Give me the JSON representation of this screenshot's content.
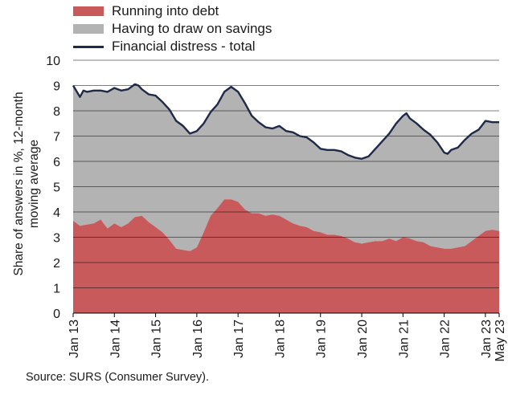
{
  "legend": {
    "debt_label": "Running into debt",
    "savings_label": "Having to draw on savings",
    "total_label": "Financial distress - total"
  },
  "y_axis_title": "Share of answers in %, 12-month moving average",
  "source": "Source: SURS (Consumer Survey).",
  "colors": {
    "debt_fill": "#c95a5c",
    "savings_fill": "#b3b3b3",
    "total_line": "#1f2a48",
    "grid": "#000000"
  },
  "chart_data": {
    "type": "area",
    "title": "",
    "ylabel": "Share of answers in %, 12-month moving average",
    "xlabel": "",
    "ylim": [
      0,
      10
    ],
    "y_ticks": [
      0,
      1,
      2,
      3,
      4,
      5,
      6,
      7,
      8,
      9,
      10
    ],
    "x_ticks": [
      "Jan 13",
      "Jan 14",
      "Jan 15",
      "Jan 16",
      "Jan 17",
      "Jan 18",
      "Jan 19",
      "Jan 20",
      "Jan 21",
      "Jan 22",
      "Jan 23",
      "May 23"
    ],
    "grid": true,
    "legend_position": "top-left",
    "series": [
      {
        "name": "Running into debt",
        "kind": "area",
        "points": [
          [
            "2013-01",
            3.65
          ],
          [
            "2013-03",
            3.45
          ],
          [
            "2013-05",
            3.5
          ],
          [
            "2013-07",
            3.55
          ],
          [
            "2013-09",
            3.7
          ],
          [
            "2013-11",
            3.35
          ],
          [
            "2014-01",
            3.55
          ],
          [
            "2014-03",
            3.4
          ],
          [
            "2014-05",
            3.55
          ],
          [
            "2014-07",
            3.8
          ],
          [
            "2014-09",
            3.85
          ],
          [
            "2014-11",
            3.6
          ],
          [
            "2015-01",
            3.4
          ],
          [
            "2015-03",
            3.2
          ],
          [
            "2015-05",
            2.9
          ],
          [
            "2015-07",
            2.55
          ],
          [
            "2015-09",
            2.5
          ],
          [
            "2015-11",
            2.45
          ],
          [
            "2016-01",
            2.6
          ],
          [
            "2016-03",
            3.2
          ],
          [
            "2016-05",
            3.85
          ],
          [
            "2016-07",
            4.15
          ],
          [
            "2016-09",
            4.5
          ],
          [
            "2016-11",
            4.5
          ],
          [
            "2017-01",
            4.4
          ],
          [
            "2017-03",
            4.1
          ],
          [
            "2017-05",
            3.95
          ],
          [
            "2017-07",
            3.95
          ],
          [
            "2017-09",
            3.85
          ],
          [
            "2017-11",
            3.9
          ],
          [
            "2018-01",
            3.85
          ],
          [
            "2018-03",
            3.7
          ],
          [
            "2018-05",
            3.55
          ],
          [
            "2018-07",
            3.45
          ],
          [
            "2018-09",
            3.4
          ],
          [
            "2018-11",
            3.25
          ],
          [
            "2019-01",
            3.2
          ],
          [
            "2019-03",
            3.1
          ],
          [
            "2019-05",
            3.1
          ],
          [
            "2019-07",
            3.05
          ],
          [
            "2019-09",
            2.95
          ],
          [
            "2019-11",
            2.8
          ],
          [
            "2020-01",
            2.75
          ],
          [
            "2020-03",
            2.8
          ],
          [
            "2020-05",
            2.85
          ],
          [
            "2020-07",
            2.85
          ],
          [
            "2020-09",
            2.95
          ],
          [
            "2020-11",
            2.85
          ],
          [
            "2021-01",
            3.0
          ],
          [
            "2021-03",
            2.95
          ],
          [
            "2021-05",
            2.85
          ],
          [
            "2021-07",
            2.8
          ],
          [
            "2021-09",
            2.65
          ],
          [
            "2021-11",
            2.6
          ],
          [
            "2022-01",
            2.55
          ],
          [
            "2022-03",
            2.55
          ],
          [
            "2022-05",
            2.6
          ],
          [
            "2022-07",
            2.65
          ],
          [
            "2022-09",
            2.85
          ],
          [
            "2022-11",
            3.05
          ],
          [
            "2023-01",
            3.25
          ],
          [
            "2023-03",
            3.3
          ],
          [
            "2023-05",
            3.25
          ]
        ]
      },
      {
        "name": "Having to draw on savings",
        "kind": "stacked-area",
        "note_values": "stacked on top of debt; top edge equals the total line"
      },
      {
        "name": "Financial distress - total",
        "kind": "line",
        "points": [
          [
            "2013-01",
            9.0
          ],
          [
            "2013-03",
            8.55
          ],
          [
            "2013-04",
            8.8
          ],
          [
            "2013-05",
            8.75
          ],
          [
            "2013-07",
            8.8
          ],
          [
            "2013-09",
            8.8
          ],
          [
            "2013-11",
            8.75
          ],
          [
            "2014-01",
            8.9
          ],
          [
            "2014-03",
            8.8
          ],
          [
            "2014-05",
            8.85
          ],
          [
            "2014-07",
            9.05
          ],
          [
            "2014-08",
            9.0
          ],
          [
            "2014-09",
            8.85
          ],
          [
            "2014-11",
            8.65
          ],
          [
            "2015-01",
            8.6
          ],
          [
            "2015-03",
            8.35
          ],
          [
            "2015-05",
            8.05
          ],
          [
            "2015-07",
            7.6
          ],
          [
            "2015-09",
            7.4
          ],
          [
            "2015-11",
            7.1
          ],
          [
            "2016-01",
            7.2
          ],
          [
            "2016-03",
            7.5
          ],
          [
            "2016-05",
            7.95
          ],
          [
            "2016-07",
            8.25
          ],
          [
            "2016-09",
            8.75
          ],
          [
            "2016-11",
            8.95
          ],
          [
            "2017-01",
            8.75
          ],
          [
            "2017-03",
            8.3
          ],
          [
            "2017-05",
            7.8
          ],
          [
            "2017-07",
            7.55
          ],
          [
            "2017-09",
            7.35
          ],
          [
            "2017-11",
            7.3
          ],
          [
            "2018-01",
            7.4
          ],
          [
            "2018-03",
            7.2
          ],
          [
            "2018-05",
            7.15
          ],
          [
            "2018-07",
            7.0
          ],
          [
            "2018-09",
            6.95
          ],
          [
            "2018-11",
            6.75
          ],
          [
            "2019-01",
            6.5
          ],
          [
            "2019-03",
            6.45
          ],
          [
            "2019-05",
            6.45
          ],
          [
            "2019-07",
            6.4
          ],
          [
            "2019-09",
            6.25
          ],
          [
            "2019-11",
            6.15
          ],
          [
            "2020-01",
            6.1
          ],
          [
            "2020-03",
            6.2
          ],
          [
            "2020-05",
            6.5
          ],
          [
            "2020-07",
            6.8
          ],
          [
            "2020-09",
            7.1
          ],
          [
            "2020-11",
            7.5
          ],
          [
            "2021-01",
            7.8
          ],
          [
            "2021-02",
            7.9
          ],
          [
            "2021-03",
            7.7
          ],
          [
            "2021-05",
            7.5
          ],
          [
            "2021-07",
            7.25
          ],
          [
            "2021-09",
            7.05
          ],
          [
            "2021-11",
            6.75
          ],
          [
            "2022-01",
            6.35
          ],
          [
            "2022-02",
            6.3
          ],
          [
            "2022-03",
            6.45
          ],
          [
            "2022-05",
            6.55
          ],
          [
            "2022-07",
            6.85
          ],
          [
            "2022-09",
            7.1
          ],
          [
            "2022-11",
            7.25
          ],
          [
            "2023-01",
            7.6
          ],
          [
            "2023-03",
            7.55
          ],
          [
            "2023-05",
            7.55
          ]
        ]
      }
    ]
  }
}
